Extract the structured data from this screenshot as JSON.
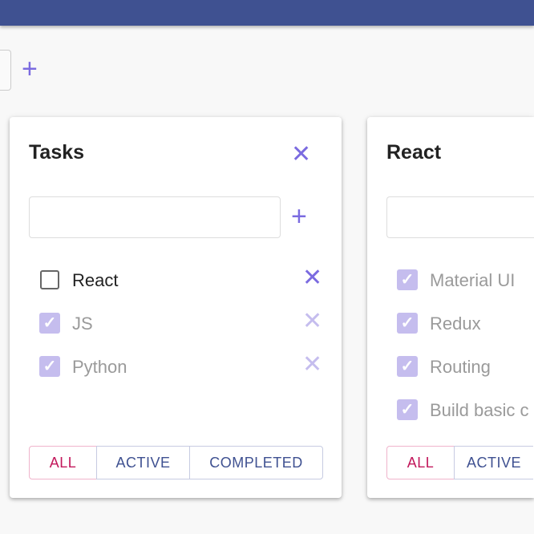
{
  "colors": {
    "appbar": "#3f5191",
    "accent": "#7b6be0",
    "selected_filter": "#c2185b"
  },
  "lists": [
    {
      "title": "Tasks",
      "items": [
        {
          "label": "React",
          "checked": false
        },
        {
          "label": "JS",
          "checked": true
        },
        {
          "label": "Python",
          "checked": true
        }
      ],
      "filters": [
        "ALL",
        "ACTIVE",
        "COMPLETED"
      ],
      "selected_filter": "ALL"
    },
    {
      "title": "React",
      "items": [
        {
          "label": "Material UI",
          "checked": true
        },
        {
          "label": "Redux",
          "checked": true
        },
        {
          "label": "Routing",
          "checked": true
        },
        {
          "label": "Build basic c",
          "checked": true
        }
      ],
      "filters": [
        "ALL",
        "ACTIVE"
      ],
      "selected_filter": "ALL"
    }
  ]
}
